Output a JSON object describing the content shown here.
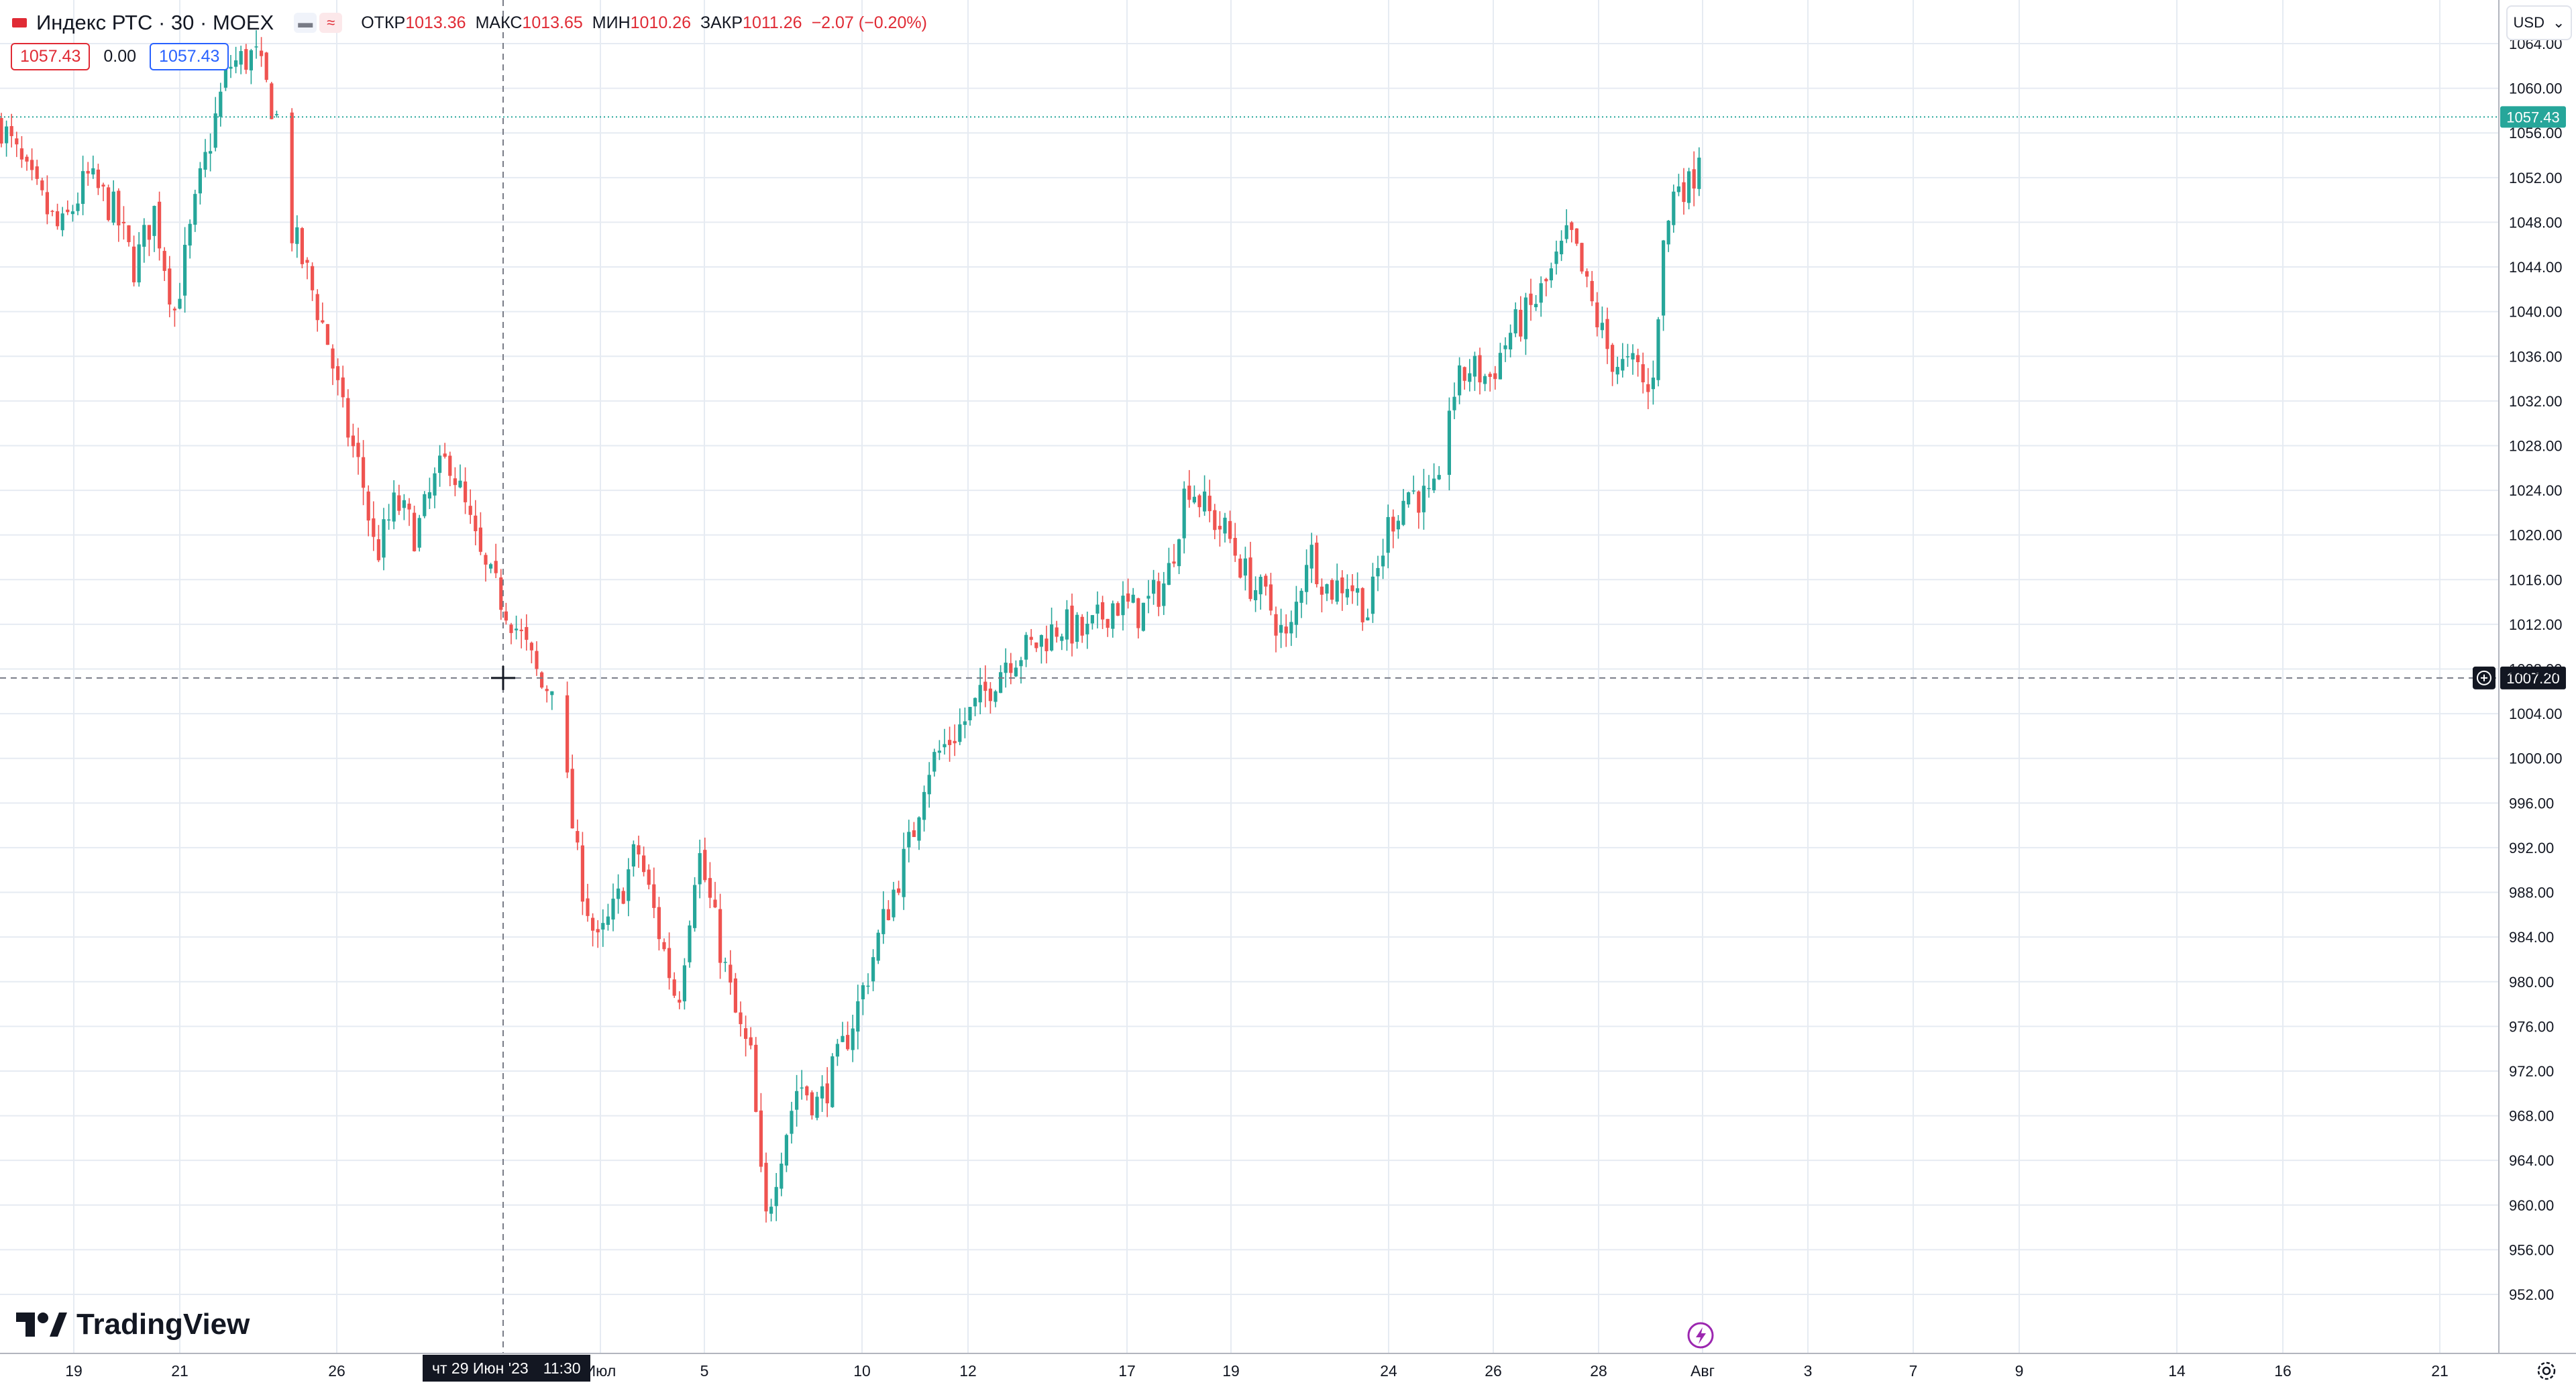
{
  "header": {
    "symbol_title": "Индекс РТС · 30 · MOEX",
    "ohlc": [
      {
        "label": "ОТКР",
        "value": "1013.36"
      },
      {
        "label": "МАКС",
        "value": "1013.65"
      },
      {
        "label": "МИН",
        "value": "1010.26"
      },
      {
        "label": "ЗАКР",
        "value": "1011.26"
      },
      {
        "label": "",
        "value": "−2.07 (−0.20%)"
      }
    ],
    "bid": "1057.43",
    "spread": "0.00",
    "ask": "1057.43",
    "currency": "USD"
  },
  "brand": "TradingView",
  "crosshair": {
    "time_label": "чт 29 Июн '23",
    "time_value": "11:30",
    "price_label": "1007.20"
  },
  "colors": {
    "up": "#26a69a",
    "down": "#ef5350",
    "grid": "#e6ebf2",
    "last_price_bg": "#26a69a",
    "crosshair_label_bg": "#131722"
  },
  "chart_data": {
    "type": "candlestick",
    "title": "Индекс РТС · 30 · MOEX",
    "ylim": [
      950,
      1068
    ],
    "y_ticks": [
      952,
      956,
      960,
      964,
      968,
      972,
      976,
      980,
      984,
      988,
      992,
      996,
      1000,
      1004,
      1008,
      1012,
      1016,
      1020,
      1024,
      1028,
      1032,
      1036,
      1040,
      1044,
      1048,
      1052,
      1056,
      1060,
      1064
    ],
    "x_labels": [
      "19",
      "21",
      "26",
      "Июл",
      "5",
      "10",
      "12",
      "17",
      "19",
      "24",
      "26",
      "28",
      "Авг",
      "3",
      "7",
      "9",
      "14",
      "16",
      "21"
    ],
    "last_price": 1057.43,
    "crosshair_price": 1007.2,
    "path_points": [
      [
        0,
        1057
      ],
      [
        40,
        1052
      ],
      [
        90,
        1047
      ],
      [
        130,
        1052
      ],
      [
        170,
        1049
      ],
      [
        200,
        1044
      ],
      [
        230,
        1049
      ],
      [
        260,
        1040
      ],
      [
        300,
        1052
      ],
      [
        340,
        1062
      ],
      [
        380,
        1063
      ],
      [
        420,
        1056
      ],
      [
        430,
        1048
      ],
      [
        460,
        1043
      ],
      [
        490,
        1037
      ],
      [
        510,
        1031
      ],
      [
        540,
        1025
      ],
      [
        560,
        1018
      ],
      [
        590,
        1023
      ],
      [
        620,
        1020
      ],
      [
        650,
        1025
      ],
      [
        670,
        1027
      ],
      [
        700,
        1021
      ],
      [
        720,
        1017
      ],
      [
        760,
        1013
      ],
      [
        790,
        1009
      ],
      [
        810,
        1006
      ],
      [
        830,
        1008
      ],
      [
        840,
        1000
      ],
      [
        860,
        991
      ],
      [
        890,
        983
      ],
      [
        920,
        987
      ],
      [
        950,
        992
      ],
      [
        980,
        985
      ],
      [
        1010,
        978
      ],
      [
        1040,
        992
      ],
      [
        1070,
        984
      ],
      [
        1100,
        976
      ],
      [
        1120,
        973
      ],
      [
        1140,
        958
      ],
      [
        1160,
        964
      ],
      [
        1190,
        971
      ],
      [
        1220,
        969
      ],
      [
        1250,
        973
      ],
      [
        1280,
        978
      ],
      [
        1320,
        986
      ],
      [
        1360,
        993
      ],
      [
        1380,
        999
      ],
      [
        1420,
        1002
      ],
      [
        1460,
        1005
      ],
      [
        1500,
        1009
      ],
      [
        1540,
        1010
      ],
      [
        1580,
        1012
      ],
      [
        1620,
        1011
      ],
      [
        1660,
        1014
      ],
      [
        1700,
        1013
      ],
      [
        1740,
        1016
      ],
      [
        1770,
        1025
      ],
      [
        1800,
        1022
      ],
      [
        1830,
        1020
      ],
      [
        1860,
        1016
      ],
      [
        1890,
        1014
      ],
      [
        1920,
        1010
      ],
      [
        1950,
        1019
      ],
      [
        1980,
        1015
      ],
      [
        2010,
        1016
      ],
      [
        2040,
        1013
      ],
      [
        2070,
        1021
      ],
      [
        2100,
        1024
      ],
      [
        2130,
        1023
      ],
      [
        2150,
        1024
      ],
      [
        2160,
        1032
      ],
      [
        2190,
        1035
      ],
      [
        2220,
        1034
      ],
      [
        2250,
        1038
      ],
      [
        2280,
        1040
      ],
      [
        2310,
        1043
      ],
      [
        2340,
        1047
      ],
      [
        2370,
        1041
      ],
      [
        2400,
        1036
      ],
      [
        2420,
        1035
      ],
      [
        2440,
        1035
      ],
      [
        2460,
        1032
      ],
      [
        2480,
        1046
      ],
      [
        2500,
        1052
      ],
      [
        2520,
        1051
      ],
      [
        2540,
        1057
      ]
    ],
    "gaps": [
      420,
      830,
      2150
    ]
  }
}
